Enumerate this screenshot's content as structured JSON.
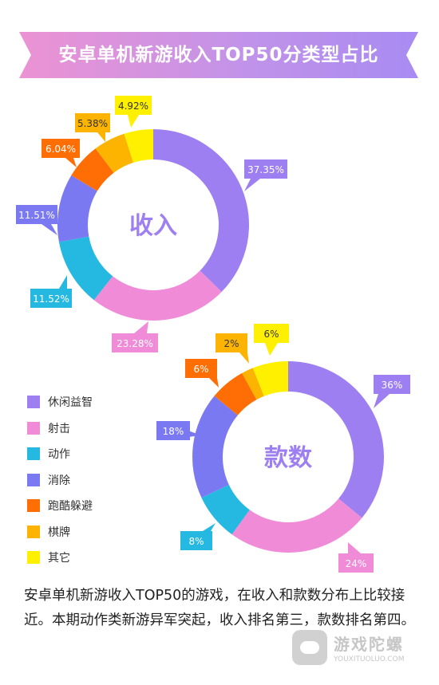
{
  "title": "安卓单机新游收入TOP50分类型占比",
  "colors": [
    "#9d7ff2",
    "#f08bd8",
    "#25b8e0",
    "#7b79f2",
    "#ff6e05",
    "#fcb400",
    "#fff000"
  ],
  "chart_data": [
    {
      "type": "pie",
      "center_label": "收入",
      "categories": [
        "休闲益智",
        "射击",
        "动作",
        "消除",
        "跑酷躲避",
        "棋牌",
        "其它"
      ],
      "values": [
        37.35,
        23.28,
        11.52,
        11.51,
        6.04,
        5.38,
        4.92
      ],
      "labels": [
        "37.35%",
        "23.28%",
        "11.52%",
        "11.51%",
        "6.04%",
        "5.38%",
        "4.92%"
      ]
    },
    {
      "type": "pie",
      "center_label": "款数",
      "categories": [
        "休闲益智",
        "射击",
        "动作",
        "消除",
        "跑酷躲避",
        "棋牌",
        "其它"
      ],
      "values": [
        36,
        24,
        8,
        18,
        6,
        2,
        6
      ],
      "labels": [
        "36%",
        "24%",
        "8%",
        "18%",
        "6%",
        "2%",
        "6%"
      ]
    }
  ],
  "legend": {
    "items": [
      {
        "label": "休闲益智",
        "color": "#9d7ff2"
      },
      {
        "label": "射击",
        "color": "#f08bd8"
      },
      {
        "label": "动作",
        "color": "#25b8e0"
      },
      {
        "label": "消除",
        "color": "#7b79f2"
      },
      {
        "label": "跑酷躲避",
        "color": "#ff6e05"
      },
      {
        "label": "棋牌",
        "color": "#fcb400"
      },
      {
        "label": "其它",
        "color": "#fff000"
      }
    ]
  },
  "description": "安卓单机新游收入TOP50的游戏，在收入和款数分布上比较接近。本期动作类新游异军突起，收入排名第三，款数排名第四。",
  "watermark": {
    "name": "游戏陀螺",
    "url": "YOUXITUOLUO.COM"
  }
}
